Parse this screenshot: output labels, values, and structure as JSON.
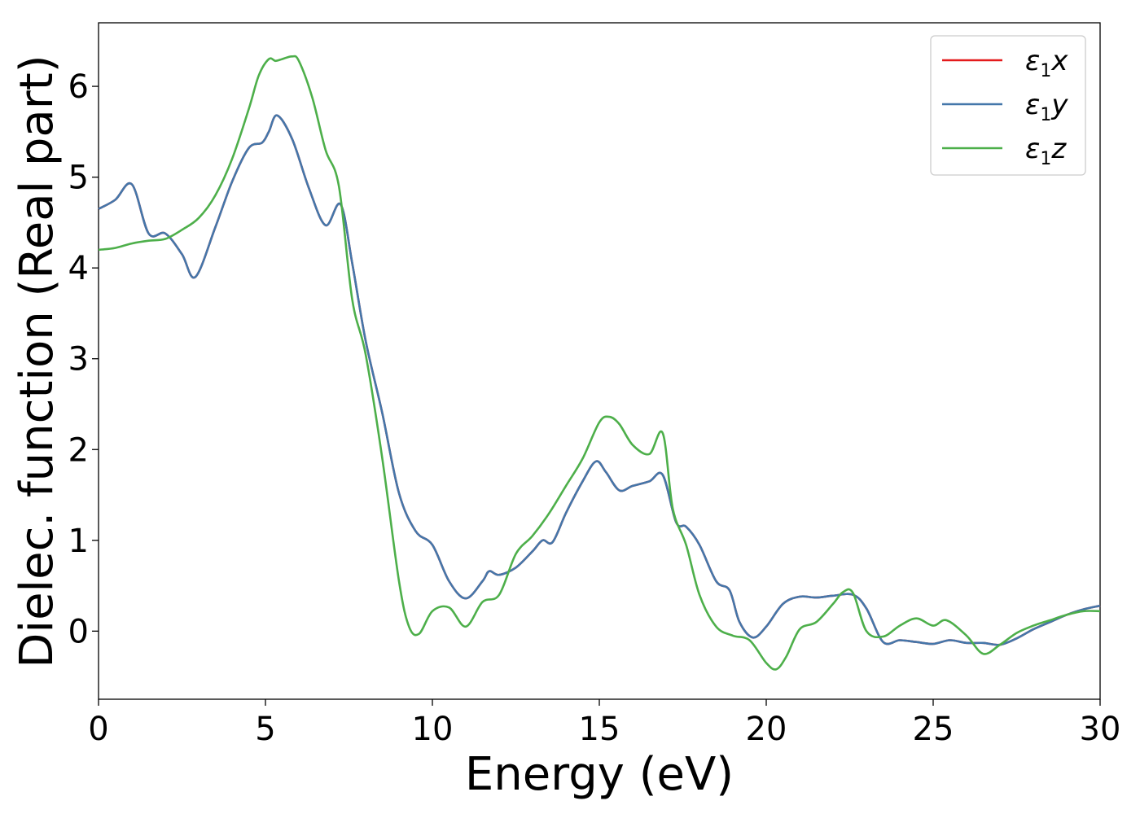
{
  "chart_data": {
    "type": "line",
    "xlabel": "Energy (eV)",
    "ylabel": "Dielec. function (Real part)",
    "xlim": [
      0,
      30
    ],
    "ylim": [
      -0.75,
      6.7
    ],
    "xticks": [
      "0",
      "5",
      "10",
      "15",
      "20",
      "25",
      "30"
    ],
    "yticks": [
      "0",
      "1",
      "2",
      "3",
      "4",
      "5",
      "6"
    ],
    "grid": false,
    "legend_position": "top-right",
    "series": [
      {
        "name": "ε1x",
        "legend_main": "ε",
        "legend_sub": "1",
        "legend_tail": "x",
        "color": "#e41a1c",
        "x": [
          0,
          0.5,
          1,
          1.5,
          2,
          2.5,
          2.9,
          3.5,
          4,
          4.5,
          4.9,
          5.1,
          5.35,
          5.8,
          6.3,
          6.8,
          7.25,
          7.6,
          8,
          8.5,
          9,
          9.5,
          10,
          10.5,
          11,
          11.5,
          11.7,
          12,
          12.5,
          13,
          13.3,
          13.6,
          14,
          14.5,
          14.9,
          15.2,
          15.6,
          16,
          16.5,
          16.9,
          17.3,
          17.6,
          18,
          18.5,
          18.9,
          19.2,
          19.6,
          20,
          20.5,
          21,
          21.5,
          22,
          22.6,
          23,
          23.5,
          24,
          24.5,
          25,
          25.5,
          26,
          26.5,
          27,
          27.5,
          28,
          28.5,
          29,
          29.5,
          30
        ],
        "y": [
          4.65,
          4.75,
          4.92,
          4.38,
          4.38,
          4.15,
          3.9,
          4.45,
          4.95,
          5.32,
          5.38,
          5.5,
          5.68,
          5.42,
          4.88,
          4.47,
          4.7,
          4.05,
          3.2,
          2.4,
          1.52,
          1.1,
          0.95,
          0.55,
          0.36,
          0.55,
          0.66,
          0.62,
          0.7,
          0.88,
          1.0,
          0.98,
          1.3,
          1.65,
          1.87,
          1.75,
          1.55,
          1.6,
          1.65,
          1.72,
          1.2,
          1.15,
          0.95,
          0.55,
          0.45,
          0.1,
          -0.07,
          0.05,
          0.3,
          0.38,
          0.37,
          0.39,
          0.4,
          0.25,
          -0.12,
          -0.1,
          -0.12,
          -0.14,
          -0.1,
          -0.13,
          -0.13,
          -0.15,
          -0.08,
          0.02,
          0.1,
          0.18,
          0.24,
          0.28
        ]
      },
      {
        "name": "ε1y",
        "legend_main": "ε",
        "legend_sub": "1",
        "legend_tail": "y",
        "color": "#4477aa",
        "x": [
          0,
          0.5,
          1,
          1.5,
          2,
          2.5,
          2.9,
          3.5,
          4,
          4.5,
          4.9,
          5.1,
          5.35,
          5.8,
          6.3,
          6.8,
          7.25,
          7.6,
          8,
          8.5,
          9,
          9.5,
          10,
          10.5,
          11,
          11.5,
          11.7,
          12,
          12.5,
          13,
          13.3,
          13.6,
          14,
          14.5,
          14.9,
          15.2,
          15.6,
          16,
          16.5,
          16.9,
          17.3,
          17.6,
          18,
          18.5,
          18.9,
          19.2,
          19.6,
          20,
          20.5,
          21,
          21.5,
          22,
          22.6,
          23,
          23.5,
          24,
          24.5,
          25,
          25.5,
          26,
          26.5,
          27,
          27.5,
          28,
          28.5,
          29,
          29.5,
          30
        ],
        "y": [
          4.65,
          4.75,
          4.92,
          4.38,
          4.38,
          4.15,
          3.9,
          4.45,
          4.95,
          5.32,
          5.38,
          5.5,
          5.68,
          5.42,
          4.88,
          4.47,
          4.7,
          4.05,
          3.2,
          2.4,
          1.52,
          1.1,
          0.95,
          0.55,
          0.36,
          0.55,
          0.66,
          0.62,
          0.7,
          0.88,
          1.0,
          0.98,
          1.3,
          1.65,
          1.87,
          1.75,
          1.55,
          1.6,
          1.65,
          1.72,
          1.2,
          1.15,
          0.95,
          0.55,
          0.45,
          0.1,
          -0.07,
          0.05,
          0.3,
          0.38,
          0.37,
          0.39,
          0.4,
          0.25,
          -0.12,
          -0.1,
          -0.12,
          -0.14,
          -0.1,
          -0.13,
          -0.13,
          -0.15,
          -0.08,
          0.02,
          0.1,
          0.18,
          0.24,
          0.28
        ]
      },
      {
        "name": "ε1z",
        "legend_main": "ε",
        "legend_sub": "1",
        "legend_tail": "z",
        "color": "#4daf4a",
        "x": [
          0,
          0.5,
          1,
          1.5,
          2,
          2.5,
          3,
          3.5,
          4,
          4.5,
          4.8,
          5.1,
          5.3,
          5.5,
          5.8,
          6,
          6.4,
          6.8,
          7.2,
          7.6,
          8,
          8.5,
          9,
          9.3,
          9.6,
          10,
          10.5,
          11,
          11.5,
          12,
          12.5,
          13,
          13.5,
          14,
          14.5,
          15,
          15.3,
          15.6,
          16,
          16.5,
          16.9,
          17.2,
          17.6,
          18,
          18.5,
          19,
          19.5,
          20,
          20.3,
          20.6,
          21,
          21.5,
          22,
          22.3,
          22.6,
          23,
          23.5,
          24,
          24.5,
          25,
          25.4,
          26,
          26.5,
          27,
          27.5,
          28,
          28.5,
          29,
          29.5,
          30
        ],
        "y": [
          4.2,
          4.22,
          4.27,
          4.3,
          4.32,
          4.42,
          4.55,
          4.8,
          5.2,
          5.75,
          6.12,
          6.3,
          6.28,
          6.3,
          6.33,
          6.28,
          5.88,
          5.3,
          4.9,
          3.65,
          3.05,
          1.9,
          0.55,
          0.05,
          -0.03,
          0.22,
          0.26,
          0.05,
          0.32,
          0.4,
          0.85,
          1.05,
          1.3,
          1.6,
          1.9,
          2.3,
          2.36,
          2.28,
          2.05,
          1.95,
          2.18,
          1.35,
          0.95,
          0.4,
          0.05,
          -0.05,
          -0.1,
          -0.35,
          -0.42,
          -0.28,
          0.02,
          0.1,
          0.3,
          0.43,
          0.42,
          0.0,
          -0.06,
          0.06,
          0.14,
          0.06,
          0.12,
          -0.05,
          -0.25,
          -0.15,
          -0.02,
          0.06,
          0.12,
          0.18,
          0.22,
          0.22
        ]
      }
    ]
  }
}
